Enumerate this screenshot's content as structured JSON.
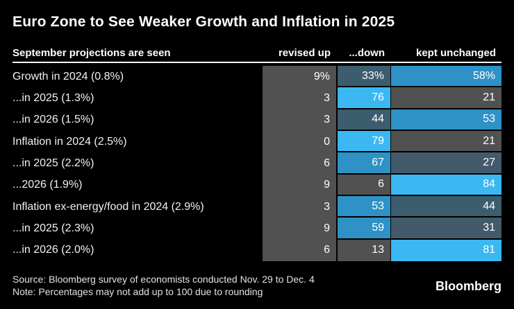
{
  "title": "Euro Zone to See Weaker Growth and Inflation in 2025",
  "header": {
    "label": "September projections are seen",
    "columns": [
      "revised up",
      "...down",
      "kept unchanged"
    ]
  },
  "chart_data": {
    "type": "heatmap",
    "title": "Euro Zone to See Weaker Growth and Inflation in 2025",
    "columns": [
      "revised up",
      "...down",
      "kept unchanged"
    ],
    "unit": "percent of economists surveyed",
    "color_scale": {
      "low_gray": "#515151",
      "mid_slate": "#3b5d6e",
      "mid_blue": "#2e92c6",
      "high_cyan": "#3bb8f2"
    },
    "rows": [
      {
        "label": "Growth in 2024 (0.8%)",
        "cells": [
          {
            "text": "9%",
            "value": 9,
            "color": "#515151"
          },
          {
            "text": "33%",
            "value": 33,
            "color": "#3b5d6e"
          },
          {
            "text": "58%",
            "value": 58,
            "color": "#2e92c6"
          }
        ]
      },
      {
        "label": "...in 2025 (1.3%)",
        "cells": [
          {
            "text": "3",
            "value": 3,
            "color": "#515151"
          },
          {
            "text": "76",
            "value": 76,
            "color": "#3bb8f2"
          },
          {
            "text": "21",
            "value": 21,
            "color": "#515151"
          }
        ]
      },
      {
        "label": "...in 2026 (1.5%)",
        "cells": [
          {
            "text": "3",
            "value": 3,
            "color": "#515151"
          },
          {
            "text": "44",
            "value": 44,
            "color": "#3b5d6e"
          },
          {
            "text": "53",
            "value": 53,
            "color": "#2e92c6"
          }
        ]
      },
      {
        "label": "Inflation in 2024 (2.5%)",
        "cells": [
          {
            "text": "0",
            "value": 0,
            "color": "#515151"
          },
          {
            "text": "79",
            "value": 79,
            "color": "#3bb8f2"
          },
          {
            "text": "21",
            "value": 21,
            "color": "#515151"
          }
        ]
      },
      {
        "label": "...in 2025 (2.2%)",
        "cells": [
          {
            "text": "6",
            "value": 6,
            "color": "#515151"
          },
          {
            "text": "67",
            "value": 67,
            "color": "#2e92c6"
          },
          {
            "text": "27",
            "value": 27,
            "color": "#435a6a"
          }
        ]
      },
      {
        "label": "...2026 (1.9%)",
        "cells": [
          {
            "text": "9",
            "value": 9,
            "color": "#515151"
          },
          {
            "text": "6",
            "value": 6,
            "color": "#515151"
          },
          {
            "text": "84",
            "value": 84,
            "color": "#3bb8f2"
          }
        ]
      },
      {
        "label": "Inflation ex-energy/food in 2024 (2.9%)",
        "cells": [
          {
            "text": "3",
            "value": 3,
            "color": "#515151"
          },
          {
            "text": "53",
            "value": 53,
            "color": "#2e92c6"
          },
          {
            "text": "44",
            "value": 44,
            "color": "#3b5d6e"
          }
        ]
      },
      {
        "label": "...in 2025 (2.3%)",
        "cells": [
          {
            "text": "9",
            "value": 9,
            "color": "#515151"
          },
          {
            "text": "59",
            "value": 59,
            "color": "#2e92c6"
          },
          {
            "text": "31",
            "value": 31,
            "color": "#435a6a"
          }
        ]
      },
      {
        "label": "...in 2026 (2.0%)",
        "cells": [
          {
            "text": "6",
            "value": 6,
            "color": "#515151"
          },
          {
            "text": "13",
            "value": 13,
            "color": "#515151"
          },
          {
            "text": "81",
            "value": 81,
            "color": "#3bb8f2"
          }
        ]
      }
    ]
  },
  "footer": {
    "source": "Source: Bloomberg survey of economists conducted Nov. 29 to Dec. 4",
    "note": "Note: Percentages may not add up to 100 due to rounding",
    "logo": "Bloomberg"
  }
}
